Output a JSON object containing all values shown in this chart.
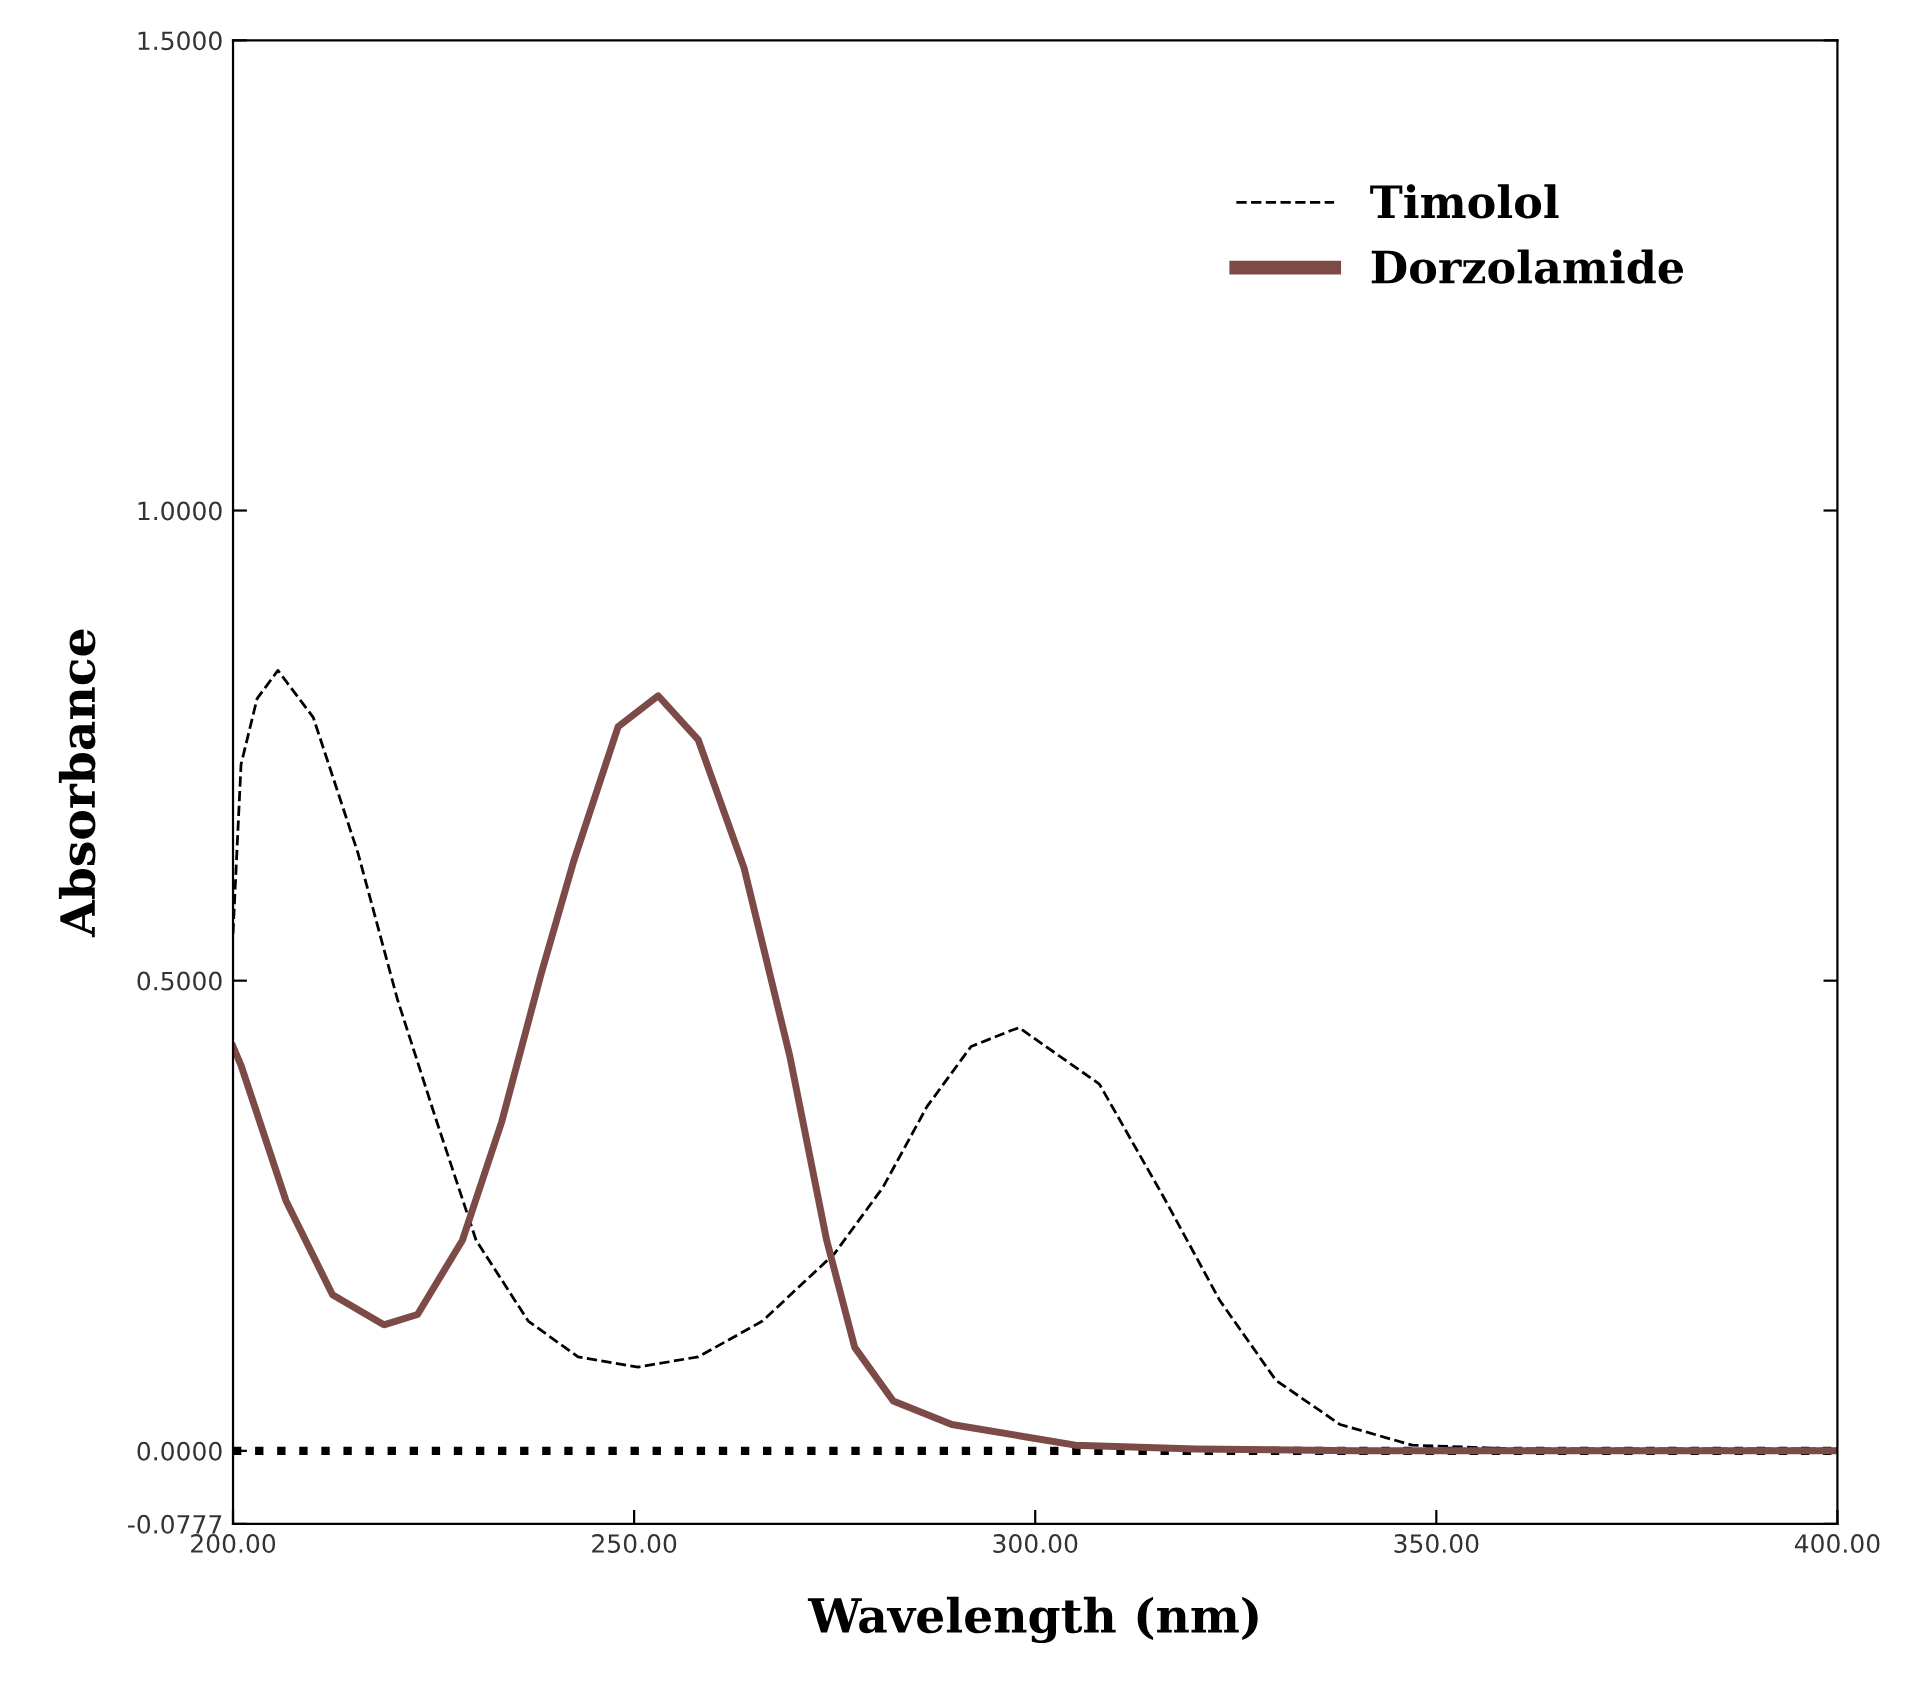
{
  "chart_data": {
    "type": "line",
    "xlabel": "Wavelength (nm)",
    "ylabel": "Absorbance",
    "xlim": [
      200,
      400
    ],
    "ylim": [
      -0.0777,
      1.5
    ],
    "xticks": [
      {
        "value": 200,
        "label": "200.00"
      },
      {
        "value": 250,
        "label": "250.00"
      },
      {
        "value": 300,
        "label": "300.00"
      },
      {
        "value": 350,
        "label": "350.00"
      },
      {
        "value": 400,
        "label": "400.00"
      }
    ],
    "yticks": [
      {
        "value": -0.0777,
        "label": "-0.0777"
      },
      {
        "value": 0,
        "label": "0.0000"
      },
      {
        "value": 0.5,
        "label": "0.5000"
      },
      {
        "value": 1.0,
        "label": "1.0000"
      },
      {
        "value": 1.5,
        "label": "1.5000"
      }
    ],
    "legend": "top right",
    "grid": false,
    "marker": "none",
    "ref_lines": [
      {
        "axis": "y",
        "value": 0,
        "color": "#000000",
        "line_style": "dotted"
      }
    ],
    "series": [
      {
        "name": "Timolol",
        "color": "#000000",
        "line_style": "dashed",
        "x": [
          200,
          201,
          203,
          205.6,
          210,
          215.6,
          220.5,
          225.4,
          230.3,
          236.8,
          243,
          250.5,
          258,
          266,
          275,
          281,
          286.5,
          292,
          297,
          298,
          308,
          316,
          323,
          330,
          338,
          347,
          360,
          380,
          400
        ],
        "values": [
          0.55,
          0.73,
          0.8,
          0.83,
          0.78,
          0.635,
          0.48,
          0.35,
          0.224,
          0.138,
          0.1,
          0.089,
          0.1,
          0.138,
          0.21,
          0.28,
          0.366,
          0.43,
          0.447,
          0.45,
          0.39,
          0.27,
          0.16,
          0.075,
          0.028,
          0.006,
          0.002,
          0.002,
          0.002
        ]
      },
      {
        "name": "Dorzolamide",
        "color": "#7d4b47",
        "line_style": "solid",
        "x": [
          200,
          201,
          206.6,
          212.4,
          218.8,
          223,
          228.6,
          233.5,
          238.4,
          242.5,
          248,
          253,
          258,
          263.7,
          269.4,
          274,
          277.5,
          282.3,
          289.6,
          298.7,
          305,
          320,
          340,
          400
        ],
        "values": [
          0.43,
          0.41,
          0.266,
          0.166,
          0.134,
          0.145,
          0.224,
          0.35,
          0.507,
          0.628,
          0.77,
          0.803,
          0.756,
          0.62,
          0.42,
          0.224,
          0.11,
          0.053,
          0.028,
          0.015,
          0.006,
          0.002,
          0.0,
          0.0
        ]
      }
    ]
  }
}
